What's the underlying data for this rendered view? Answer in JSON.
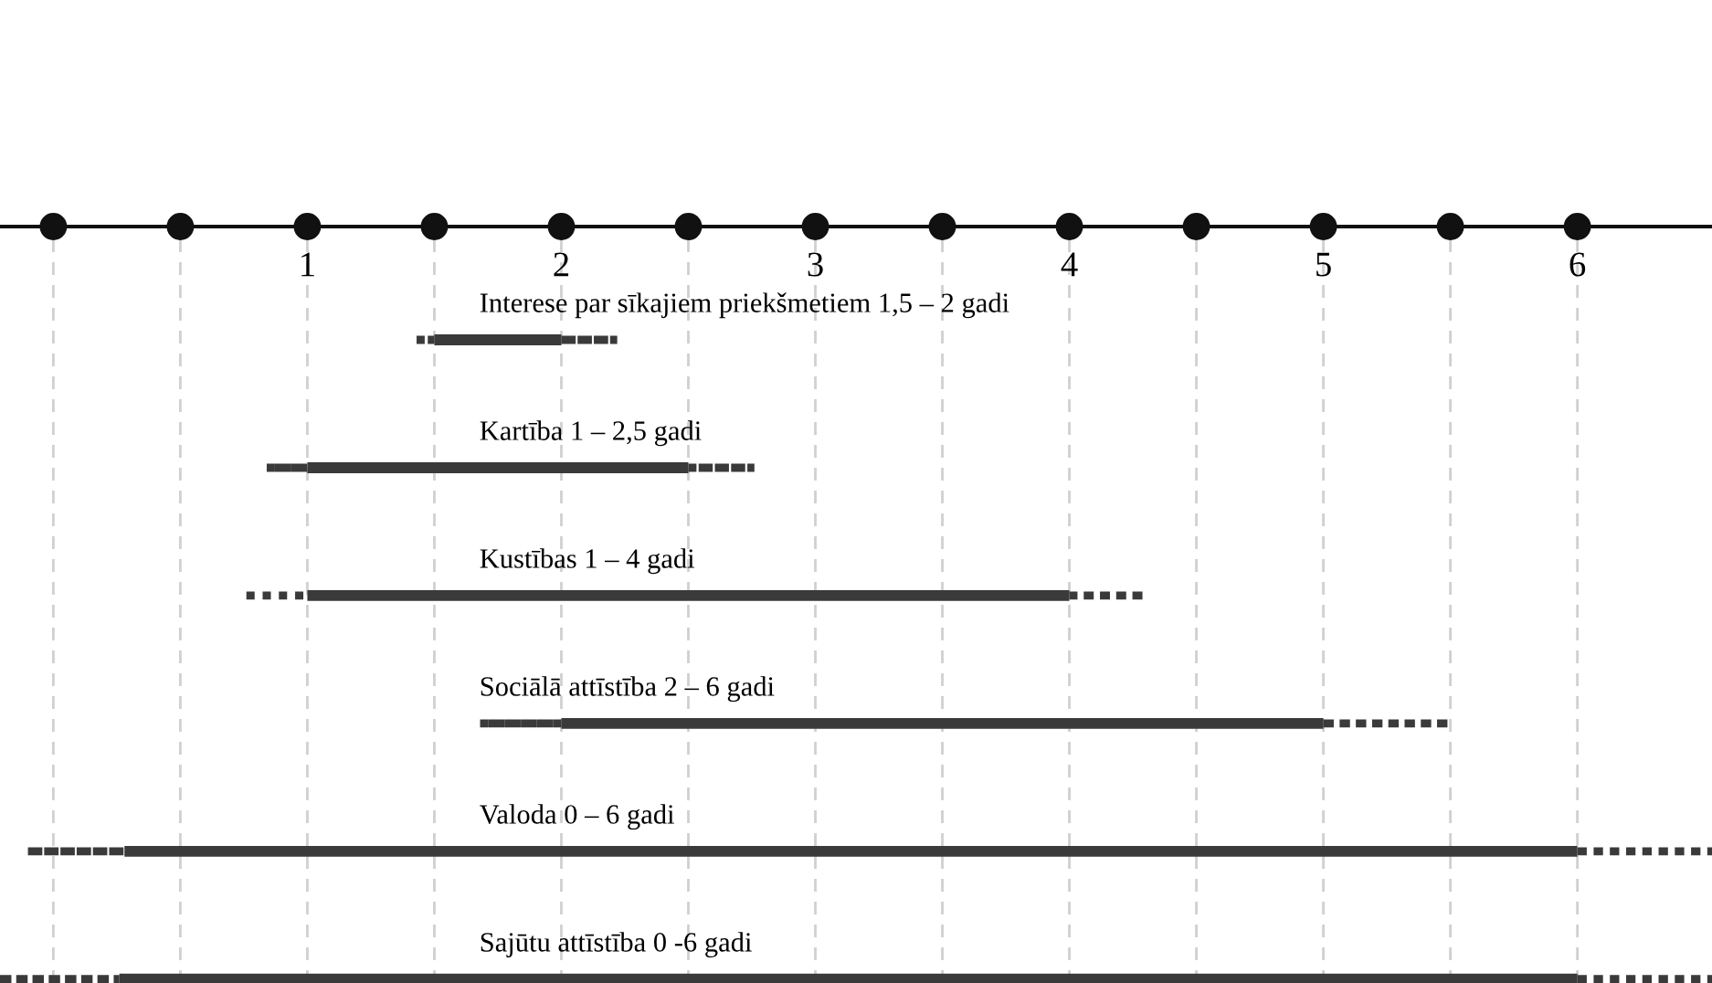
{
  "chart_data": {
    "type": "bar",
    "orientation": "horizontal",
    "categories": [
      "Interese par sīkajiem priekšmetiem 1,5 – 2 gadi",
      "Kartība 1 – 2,5 gadi",
      "Kustības 1 – 4 gadi",
      "Sociālā attīstība 2 – 6 gadi",
      "Valoda 0 – 6 gadi",
      "Sajūtu attīstība 0 -6 gadi"
    ],
    "series": [
      {
        "color": "#3a3a3a",
        "line_style": "dotted",
        "base": [
          1.43,
          0.84,
          0.76,
          1.68,
          -0.1,
          -0.21
        ],
        "values": [
          0.07,
          0.16,
          0.24,
          0.32,
          0.38,
          0.47
        ]
      },
      {
        "color": "#3a3a3a",
        "line_style": "solid",
        "base": [
          1.5,
          1.0,
          1.0,
          2.0,
          0.28,
          0.26
        ],
        "values": [
          0.5,
          1.5,
          3.0,
          3.0,
          5.72,
          5.74
        ]
      },
      {
        "color": "#3a3a3a",
        "line_style": "dotted",
        "base": [
          2.0,
          2.5,
          4.0,
          5.0,
          6.0,
          6.0
        ],
        "values": [
          0.22,
          0.26,
          0.3,
          0.5,
          0.53,
          0.53
        ]
      }
    ],
    "xlim": [
      -0.21,
      6.53
    ],
    "xticks": [
      {
        "value": 0,
        "label": null
      },
      {
        "value": 0.5,
        "label": null
      },
      1,
      {
        "value": 1.5,
        "label": null
      },
      2,
      {
        "value": 2.5,
        "label": null
      },
      3,
      {
        "value": 3.5,
        "label": null
      },
      4,
      {
        "value": 4.5,
        "label": null
      },
      5,
      {
        "value": 5.5,
        "label": null
      },
      6
    ],
    "grid": "x"
  }
}
